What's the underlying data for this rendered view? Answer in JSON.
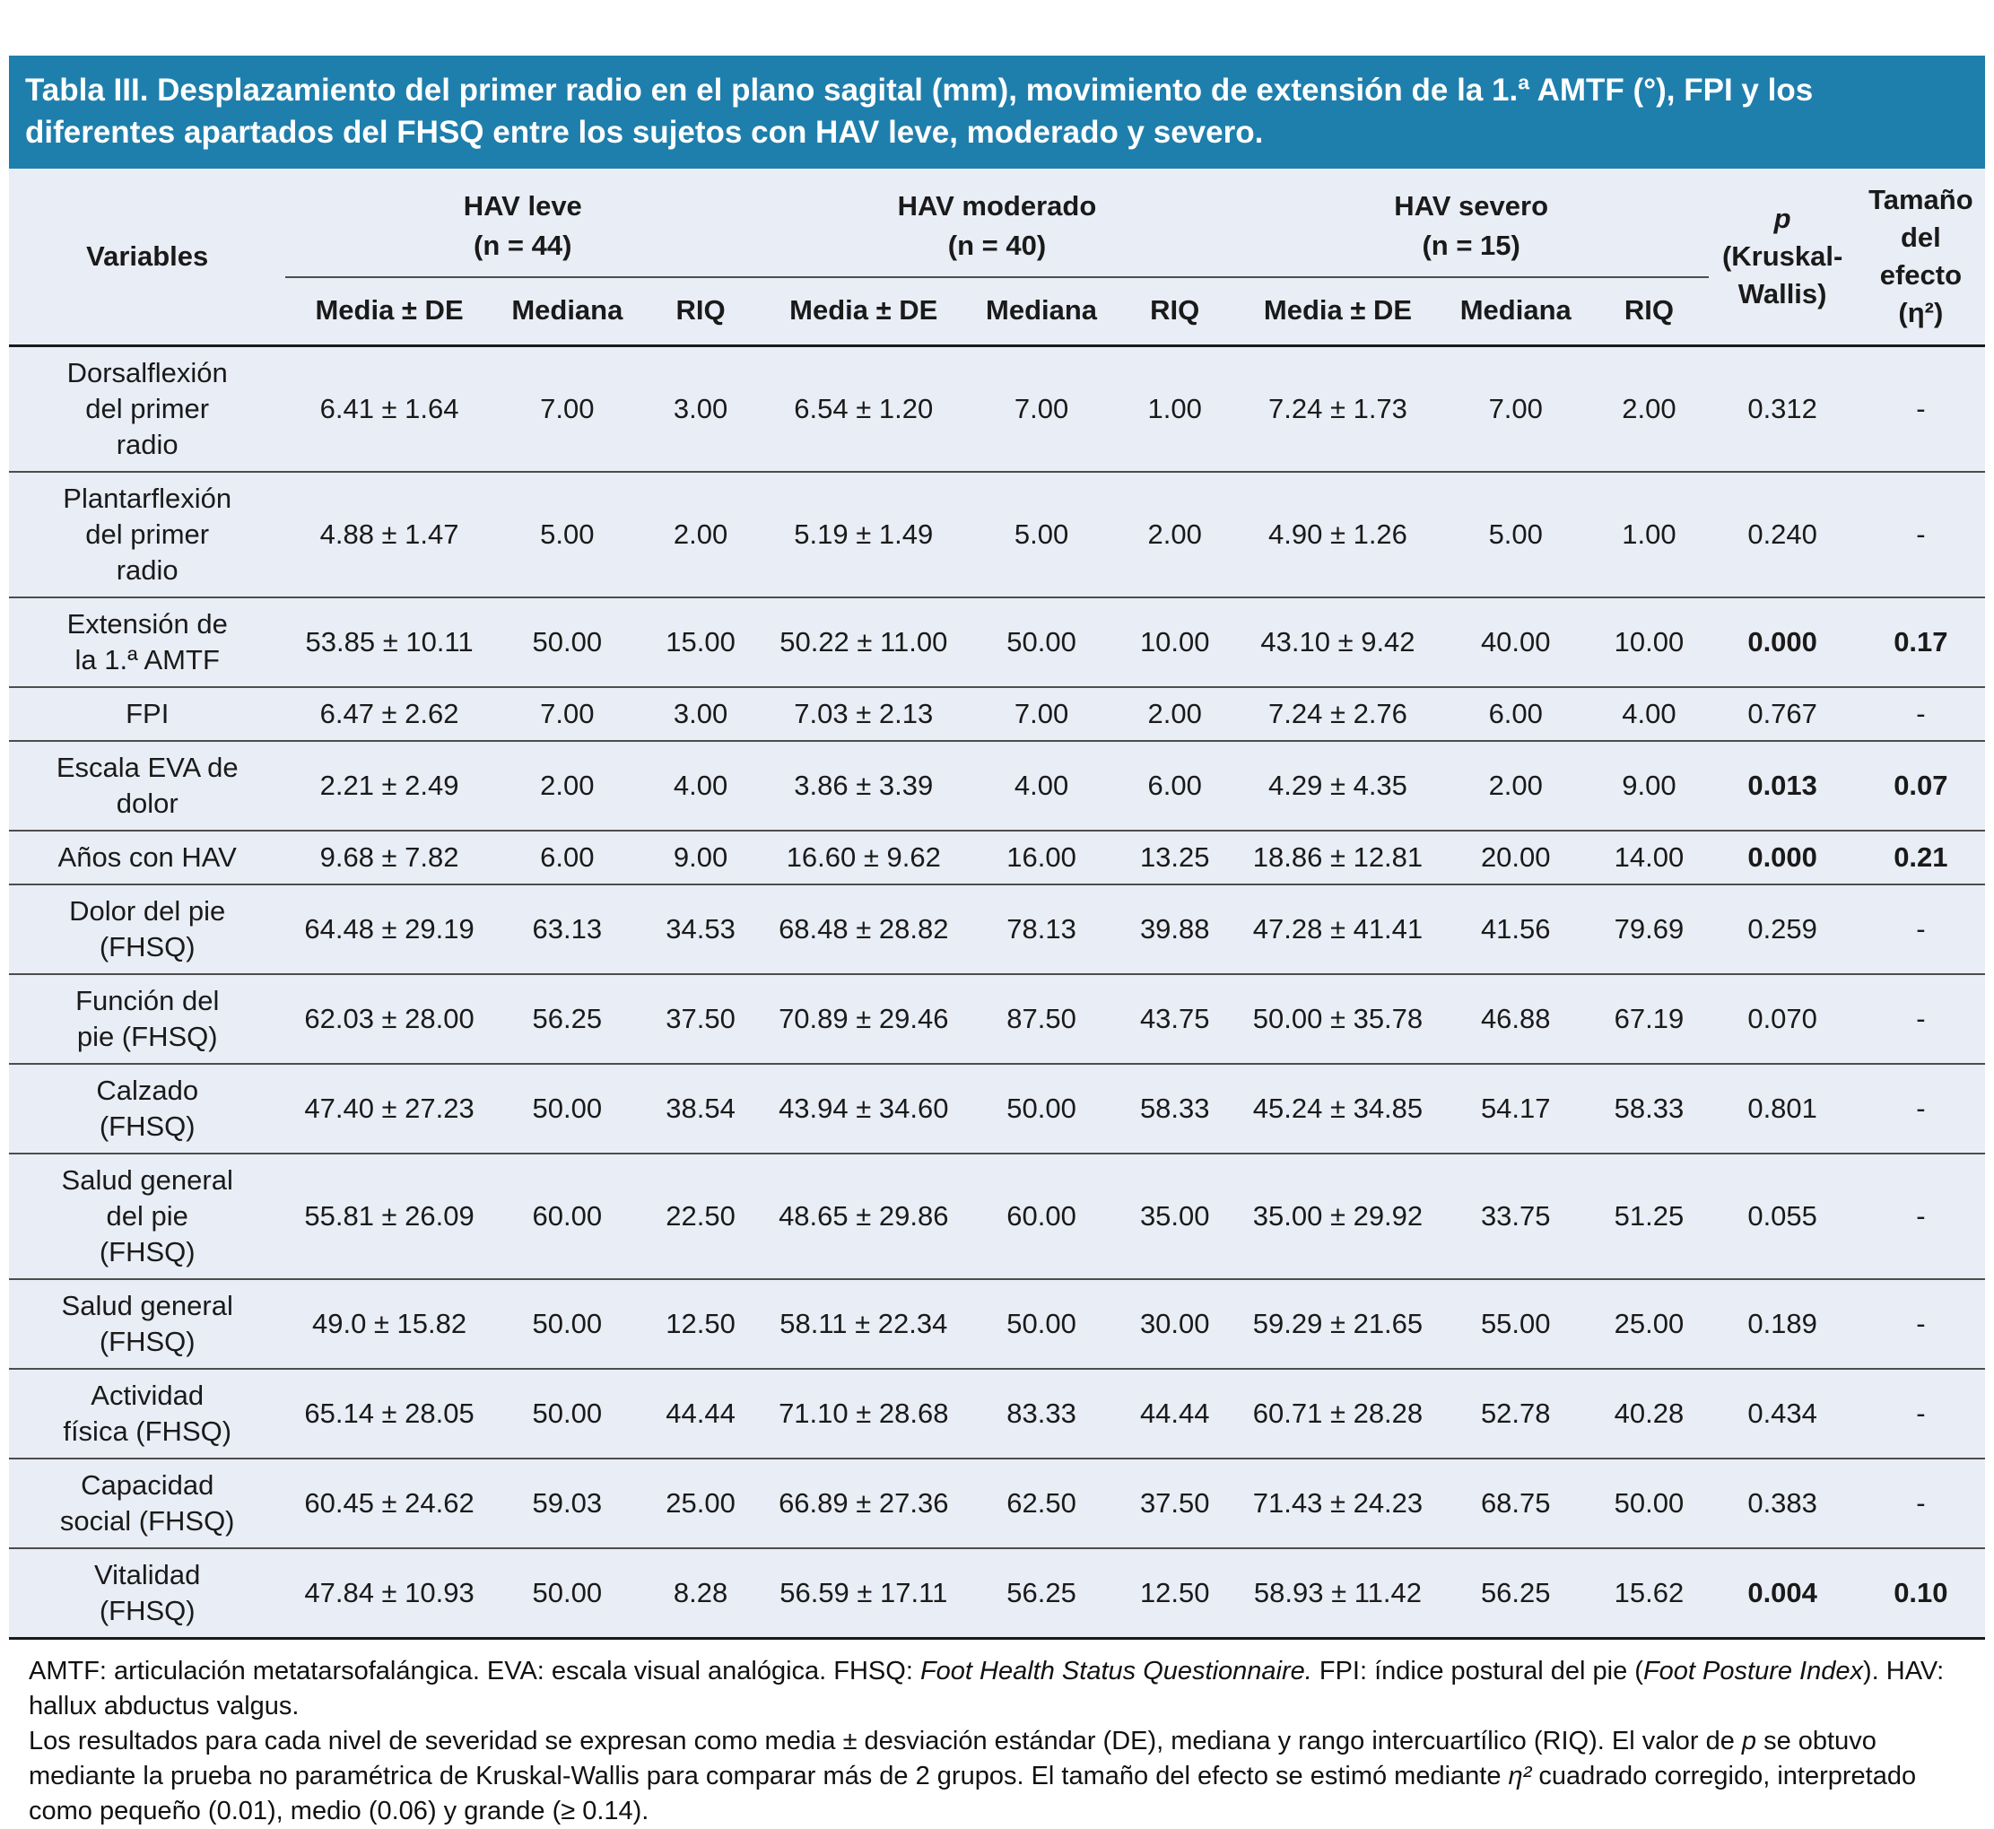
{
  "title": "Tabla III. Desplazamiento del primer radio en el plano sagital (mm), movimiento de extensión de la 1.ª AMTF (°), FPI y los diferentes apartados del FHSQ entre los sujetos con HAV leve, moderado y severo.",
  "table": {
    "variables_header": "Variables",
    "groups": [
      {
        "label": "HAV leve\n(n = 44)"
      },
      {
        "label": "HAV moderado\n(n = 40)"
      },
      {
        "label": "HAV severo\n(n = 15)"
      }
    ],
    "subheaders": [
      "Media ± DE",
      "Mediana",
      "RIQ"
    ],
    "p_header_symbol": "p",
    "p_header_method": "(Kruskal-\nWallis)",
    "effect_header": "Tamaño\ndel\nefecto\n(η²)",
    "rows": [
      {
        "variable": "Dorsalflexión\ndel primer\nradio",
        "values": [
          "6.41 ± 1.64",
          "7.00",
          "3.00",
          "6.54 ± 1.20",
          "7.00",
          "1.00",
          "7.24 ± 1.73",
          "7.00",
          "2.00"
        ],
        "p": "0.312",
        "effect": "-",
        "significant": false
      },
      {
        "variable": "Plantarflexión\ndel primer\nradio",
        "values": [
          "4.88 ± 1.47",
          "5.00",
          "2.00",
          "5.19 ± 1.49",
          "5.00",
          "2.00",
          "4.90 ± 1.26",
          "5.00",
          "1.00"
        ],
        "p": "0.240",
        "effect": "-",
        "significant": false
      },
      {
        "variable": "Extensión de\nla 1.ª AMTF",
        "values": [
          "53.85 ± 10.11",
          "50.00",
          "15.00",
          "50.22 ± 11.00",
          "50.00",
          "10.00",
          "43.10 ± 9.42",
          "40.00",
          "10.00"
        ],
        "p": "0.000",
        "effect": "0.17",
        "significant": true
      },
      {
        "variable": "FPI",
        "values": [
          "6.47 ± 2.62",
          "7.00",
          "3.00",
          "7.03 ± 2.13",
          "7.00",
          "2.00",
          "7.24 ± 2.76",
          "6.00",
          "4.00"
        ],
        "p": "0.767",
        "effect": "-",
        "significant": false
      },
      {
        "variable": "Escala EVA de\ndolor",
        "values": [
          "2.21 ± 2.49",
          "2.00",
          "4.00",
          "3.86 ± 3.39",
          "4.00",
          "6.00",
          "4.29 ± 4.35",
          "2.00",
          "9.00"
        ],
        "p": "0.013",
        "effect": "0.07",
        "significant": true
      },
      {
        "variable": "Años con HAV",
        "values": [
          "9.68 ± 7.82",
          "6.00",
          "9.00",
          "16.60 ± 9.62",
          "16.00",
          "13.25",
          "18.86 ± 12.81",
          "20.00",
          "14.00"
        ],
        "p": "0.000",
        "effect": "0.21",
        "significant": true
      },
      {
        "variable": "Dolor del pie\n(FHSQ)",
        "values": [
          "64.48 ± 29.19",
          "63.13",
          "34.53",
          "68.48 ± 28.82",
          "78.13",
          "39.88",
          "47.28 ± 41.41",
          "41.56",
          "79.69"
        ],
        "p": "0.259",
        "effect": "-",
        "significant": false
      },
      {
        "variable": "Función del\npie (FHSQ)",
        "values": [
          "62.03 ± 28.00",
          "56.25",
          "37.50",
          "70.89 ± 29.46",
          "87.50",
          "43.75",
          "50.00 ± 35.78",
          "46.88",
          "67.19"
        ],
        "p": "0.070",
        "effect": "-",
        "significant": false
      },
      {
        "variable": "Calzado\n(FHSQ)",
        "values": [
          "47.40 ± 27.23",
          "50.00",
          "38.54",
          "43.94 ± 34.60",
          "50.00",
          "58.33",
          "45.24 ± 34.85",
          "54.17",
          "58.33"
        ],
        "p": "0.801",
        "effect": "-",
        "significant": false
      },
      {
        "variable": "Salud general\ndel pie\n(FHSQ)",
        "values": [
          "55.81 ± 26.09",
          "60.00",
          "22.50",
          "48.65 ± 29.86",
          "60.00",
          "35.00",
          "35.00 ± 29.92",
          "33.75",
          "51.25"
        ],
        "p": "0.055",
        "effect": "-",
        "significant": false
      },
      {
        "variable": "Salud general\n(FHSQ)",
        "values": [
          "49.0 ± 15.82",
          "50.00",
          "12.50",
          "58.11 ± 22.34",
          "50.00",
          "30.00",
          "59.29 ± 21.65",
          "55.00",
          "25.00"
        ],
        "p": "0.189",
        "effect": "-",
        "significant": false
      },
      {
        "variable": "Actividad\nfísica (FHSQ)",
        "values": [
          "65.14 ± 28.05",
          "50.00",
          "44.44",
          "71.10 ± 28.68",
          "83.33",
          "44.44",
          "60.71 ± 28.28",
          "52.78",
          "40.28"
        ],
        "p": "0.434",
        "effect": "-",
        "significant": false
      },
      {
        "variable": "Capacidad\nsocial (FHSQ)",
        "values": [
          "60.45 ± 24.62",
          "59.03",
          "25.00",
          "66.89 ± 27.36",
          "62.50",
          "37.50",
          "71.43 ± 24.23",
          "68.75",
          "50.00"
        ],
        "p": "0.383",
        "effect": "-",
        "significant": false
      },
      {
        "variable": "Vitalidad\n(FHSQ)",
        "values": [
          "47.84 ± 10.93",
          "50.00",
          "8.28",
          "56.59 ± 17.11",
          "56.25",
          "12.50",
          "58.93 ± 11.42",
          "56.25",
          "15.62"
        ],
        "p": "0.004",
        "effect": "0.10",
        "significant": true
      }
    ]
  },
  "footnotes": [
    [
      {
        "text": "AMTF: articulación metatarsofalángica. EVA: escala visual analógica. FHSQ: ",
        "italic": false
      },
      {
        "text": "Foot Health Status Questionnaire.",
        "italic": true
      },
      {
        "text": " FPI: índice postural del pie (",
        "italic": false
      },
      {
        "text": "Foot Posture Index",
        "italic": true
      },
      {
        "text": "). HAV: hallux abductus valgus.",
        "italic": false
      }
    ],
    [
      {
        "text": "Los resultados para cada nivel de severidad se expresan como media ± desviación estándar (DE), mediana y rango intercuartílico (RIQ). El valor de ",
        "italic": false
      },
      {
        "text": "p",
        "italic": true
      },
      {
        "text": " se obtuvo mediante la prueba no paramétrica de Kruskal-Wallis para comparar más de 2 grupos. El tamaño del efecto se estimó mediante ",
        "italic": false
      },
      {
        "text": "η²",
        "italic": true
      },
      {
        "text": " cuadrado corregido, interpretado como pequeño (0.01), medio (0.06) y grande (≥ 0.14).",
        "italic": false
      }
    ]
  ],
  "colors": {
    "title_bar": "#1E7FAD",
    "table_background": "#E9EDF5",
    "rule_dark": "#1a1a1a",
    "rule_gray": "#4d4d4d"
  }
}
